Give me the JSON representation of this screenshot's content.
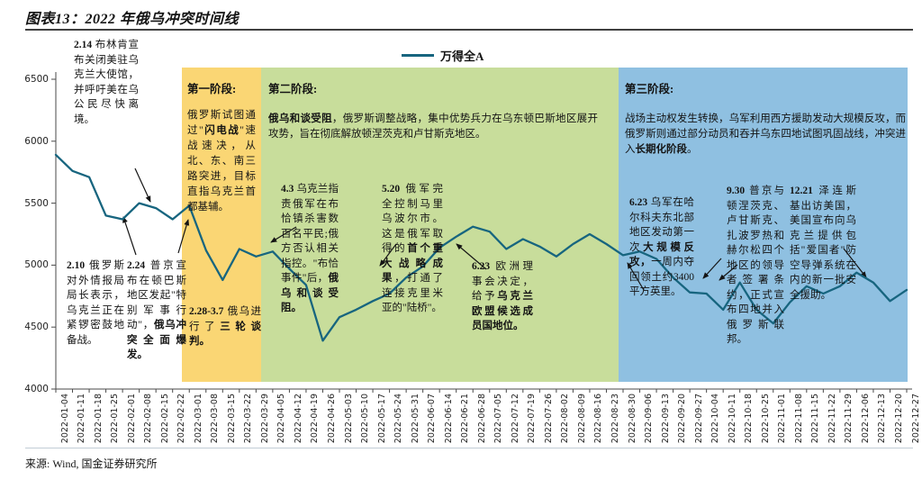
{
  "header": {
    "title": "图表13：2022 年俄乌冲突时间线"
  },
  "legend": {
    "label": "万得全A",
    "color": "#17657f"
  },
  "footer": {
    "source": "来源: Wind, 国金证券研究所"
  },
  "phases": [
    {
      "header": "第一阶段:",
      "body": [
        {
          "t": "俄罗斯试图通过\""
        },
        {
          "t": "闪电战",
          "b": true
        },
        {
          "t": "\"速战速决，从北、东、南三路突进，目标直指乌克兰首都基辅。"
        }
      ]
    },
    {
      "header": "第二阶段:",
      "body": [
        {
          "t": "俄乌和谈受阻",
          "b": true
        },
        {
          "t": "，俄罗斯调整战略，集中优势兵力在乌东顿巴斯地区展开攻势，旨在彻底解放顿涅茨克和卢甘斯克地区。"
        }
      ]
    },
    {
      "header": "第三阶段:",
      "body": [
        {
          "t": "战场主动权发生转换，乌军利用西方援助发动大规模反攻，而俄罗斯则通过部分动员和吞并乌东四地试图巩固战线，冲突进入"
        },
        {
          "t": "长期化阶段",
          "b": true
        },
        {
          "t": "。"
        }
      ]
    }
  ],
  "annotations": {
    "feb14": [
      {
        "t": "2.14 ",
        "b": true
      },
      {
        "t": "布林肯宣布关闭美驻乌克兰大使馆，并呼吁美在乌公民尽快离境。"
      }
    ],
    "feb10": [
      {
        "t": "2.10 ",
        "b": true
      },
      {
        "t": "俄罗斯对外情报局局长表示，乌克兰正在紧锣密鼓地备战。"
      }
    ],
    "feb24": [
      {
        "t": "2.24 ",
        "b": true
      },
      {
        "t": "普京宣布在顿巴斯地区发起\"特别军事行动\"，"
      },
      {
        "t": "俄乌冲突全面爆发。",
        "b": true
      }
    ],
    "mar": [
      {
        "t": "2.28-3.7 ",
        "b": true
      },
      {
        "t": "俄乌进行了"
      },
      {
        "t": "三轮谈判。",
        "b": true
      }
    ],
    "apr3": [
      {
        "t": "4.3 ",
        "b": true
      },
      {
        "t": "乌克兰指责俄军在布恰镇杀害数百名平民;俄方否认相关指控。\"布恰事件\"后，"
      },
      {
        "t": "俄乌和谈受阻。",
        "b": true
      }
    ],
    "may20": [
      {
        "t": "5.20 ",
        "b": true
      },
      {
        "t": "俄军完全控制马里乌波尔市。这是俄军取得的"
      },
      {
        "t": "首个重大战略成果",
        "b": true
      },
      {
        "t": "，打通了连接克里米亚的\"陆桥\"。"
      }
    ],
    "jun23eu": [
      {
        "t": "6.23 ",
        "b": true
      },
      {
        "t": "欧洲理事会决定，给予"
      },
      {
        "t": "乌克兰欧盟候选成员国地位。",
        "b": true
      }
    ],
    "jun23ua": [
      {
        "t": "6.23 ",
        "b": true
      },
      {
        "t": "乌军在哈尔科夫东北部地区发动第一次"
      },
      {
        "t": "大规模反攻，",
        "b": true
      },
      {
        "t": "一周内夺回领土约3400平方英里。"
      }
    ],
    "sep30": [
      {
        "t": "9.30 ",
        "b": true
      },
      {
        "t": "普京与顿涅茨克、卢甘斯克、扎波罗热和赫尔松四个地区的领导者签署条约，正式宣布四地并入俄罗斯联邦。"
      }
    ],
    "dec21": [
      {
        "t": "12.21 ",
        "b": true
      },
      {
        "t": "泽连斯基出访美国，美国宣布向乌克兰提供包括\"爱国者\"防空导弹系统在内的新一批安全援助。"
      }
    ]
  },
  "chart_data": {
    "type": "line",
    "title": "图表13：2022 年俄乌冲突时间线",
    "xlabel": "",
    "ylabel": "",
    "ylim": [
      4000,
      6500
    ],
    "yticks": [
      4000,
      4500,
      5000,
      5500,
      6000,
      6500
    ],
    "grid": false,
    "legend_position": "top",
    "regions": [
      {
        "label": "第一阶段",
        "from": "2022-02-26",
        "to": "2022-03-31",
        "color": "#fad674"
      },
      {
        "label": "第二阶段",
        "from": "2022-03-31",
        "to": "2022-08-28",
        "color": "#c8dd9b"
      },
      {
        "label": "第三阶段",
        "from": "2022-08-28",
        "to": "end",
        "color": "#8fc0e1"
      }
    ],
    "series": [
      {
        "name": "万得全A",
        "color": "#17657f",
        "x": [
          "2022-01-04",
          "2022-01-11",
          "2022-01-18",
          "2022-01-25",
          "2022-02-01",
          "2022-02-08",
          "2022-02-15",
          "2022-02-22",
          "2022-03-01",
          "2022-03-08",
          "2022-03-15",
          "2022-03-22",
          "2022-03-29",
          "2022-04-05",
          "2022-04-12",
          "2022-04-19",
          "2022-04-26",
          "2022-05-03",
          "2022-05-10",
          "2022-05-17",
          "2022-05-24",
          "2022-05-31",
          "2022-06-07",
          "2022-06-14",
          "2022-06-21",
          "2022-06-28",
          "2022-07-05",
          "2022-07-12",
          "2022-07-19",
          "2022-07-26",
          "2022-08-02",
          "2022-08-09",
          "2022-08-16",
          "2022-08-23",
          "2022-08-30",
          "2022-09-06",
          "2022-09-13",
          "2022-09-20",
          "2022-09-27",
          "2022-10-04",
          "2022-10-11",
          "2022-10-18",
          "2022-10-25",
          "2022-11-01",
          "2022-11-08",
          "2022-11-15",
          "2022-11-22",
          "2022-11-29",
          "2022-12-06",
          "2022-12-13",
          "2022-12-20",
          "2022-12-27"
        ],
        "values": [
          5890,
          5760,
          5710,
          5400,
          5370,
          5500,
          5460,
          5370,
          5480,
          5120,
          4880,
          5130,
          5070,
          5110,
          4970,
          4840,
          4390,
          4580,
          4640,
          4710,
          4770,
          4900,
          4990,
          5140,
          5230,
          5310,
          5270,
          5130,
          5210,
          5150,
          5070,
          5170,
          5250,
          5170,
          5080,
          5110,
          5050,
          4900,
          4780,
          4770,
          4640,
          4860,
          4640,
          4530,
          4700,
          4830,
          4770,
          4830,
          4940,
          4860,
          4710,
          4800
        ]
      }
    ]
  }
}
